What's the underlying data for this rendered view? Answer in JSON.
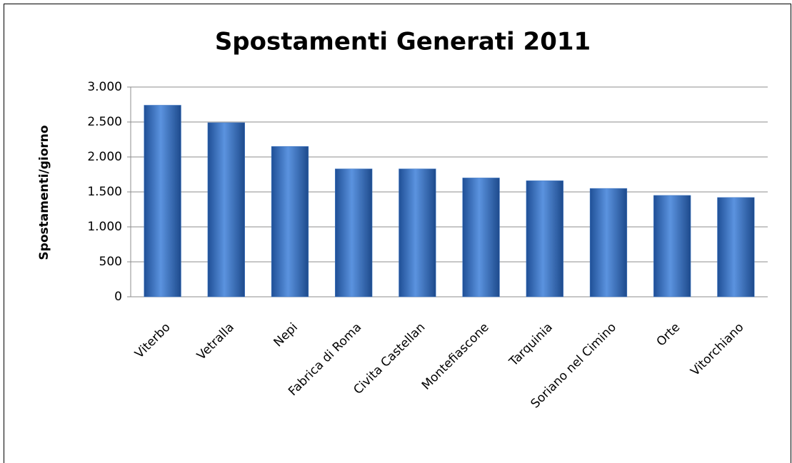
{
  "chart_data": {
    "type": "bar",
    "title": "Spostamenti Generati 2011",
    "ylabel": "Spostamenti/giorno",
    "categories": [
      "Viterbo",
      "Vetralla",
      "Nepi",
      "Fabrica di Roma",
      "Civita Castellan",
      "Montefiascone",
      "Tarquinia",
      "Soriano nel Cimino",
      "Orte",
      "Vitorchiano"
    ],
    "values": [
      2740,
      2490,
      2150,
      1830,
      1830,
      1700,
      1660,
      1550,
      1450,
      1420
    ],
    "color": "#3f78c6",
    "ylim": [
      0,
      3000
    ],
    "yticks": [
      0,
      500,
      {
        "value": 1000,
        "label": "1.000"
      },
      {
        "value": 1500,
        "label": "1.500"
      },
      {
        "value": 2000,
        "label": "2.000"
      },
      {
        "value": 2500,
        "label": "2.500"
      },
      {
        "value": 3000,
        "label": "3.000"
      }
    ],
    "grid": true
  }
}
